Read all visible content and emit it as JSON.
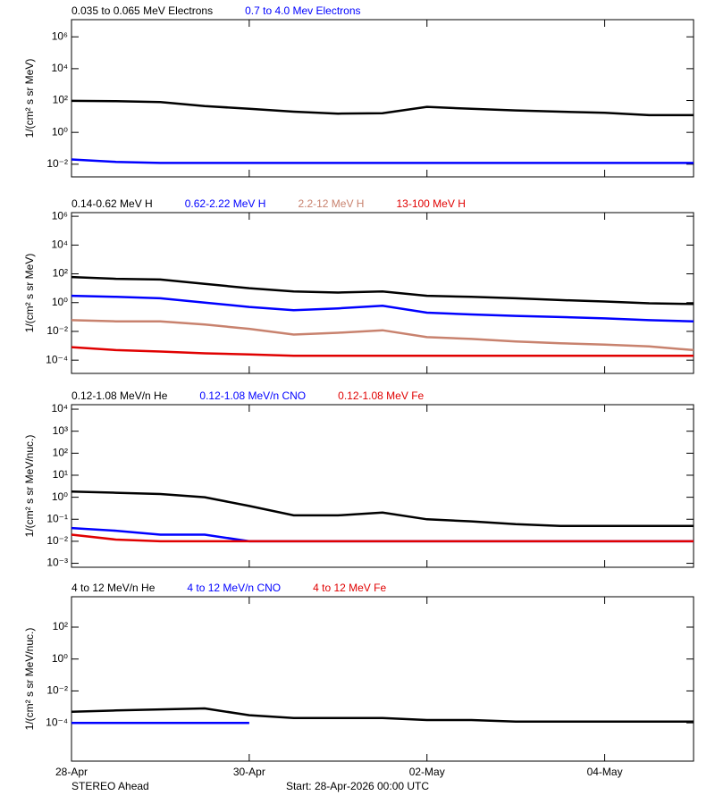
{
  "chart_data": [
    {
      "type": "line",
      "log_y": true,
      "ylabel": "1/(cm² s sr MeV)",
      "x": [
        0,
        0.5,
        1,
        1.5,
        2,
        2.5,
        3,
        3.5,
        4,
        4.5,
        5,
        5.5,
        6,
        6.5,
        7
      ],
      "xlim": [
        0,
        7
      ],
      "xticks": [
        {
          "value": 0,
          "label": "28-Apr"
        },
        {
          "value": 2,
          "label": "30-Apr"
        },
        {
          "value": 4,
          "label": "02-May"
        },
        {
          "value": 6,
          "label": "04-May"
        }
      ],
      "ylim": [
        0.0016,
        12000000
      ],
      "yticks": [
        {
          "value": 0.01,
          "label": "10⁻²"
        },
        {
          "value": 1,
          "label": "10⁰"
        },
        {
          "value": 100,
          "label": "10²"
        },
        {
          "value": 10000,
          "label": "10⁴"
        },
        {
          "value": 1000000,
          "label": "10⁶"
        }
      ],
      "series": [
        {
          "name": "0.035 to 0.065 MeV Electrons",
          "color": "#000000",
          "values": [
            95,
            90,
            80,
            45,
            30,
            20,
            15,
            16,
            40,
            30,
            24,
            20,
            17,
            12,
            12
          ]
        },
        {
          "name": "0.7 to 4.0 Mev Electrons",
          "color": "#0000ff",
          "values": [
            0.02,
            0.014,
            0.012,
            0.012,
            0.012,
            0.012,
            0.012,
            0.012,
            0.012,
            0.012,
            0.012,
            0.012,
            0.012,
            0.012,
            0.012
          ]
        }
      ]
    },
    {
      "type": "line",
      "log_y": true,
      "ylabel": "1/(cm² s sr MeV)",
      "x": [
        0,
        0.5,
        1,
        1.5,
        2,
        2.5,
        3,
        3.5,
        4,
        4.5,
        5,
        5.5,
        6,
        6.5,
        7
      ],
      "xlim": [
        0,
        7
      ],
      "xticks": [
        {
          "value": 0,
          "label": "28-Apr"
        },
        {
          "value": 2,
          "label": "30-Apr"
        },
        {
          "value": 4,
          "label": "02-May"
        },
        {
          "value": 6,
          "label": "04-May"
        }
      ],
      "ylim": [
        1.2e-05,
        1800000
      ],
      "yticks": [
        {
          "value": 0.0001,
          "label": "10⁻⁴"
        },
        {
          "value": 0.01,
          "label": "10⁻²"
        },
        {
          "value": 1,
          "label": "10⁰"
        },
        {
          "value": 100,
          "label": "10²"
        },
        {
          "value": 10000,
          "label": "10⁴"
        },
        {
          "value": 1000000,
          "label": "10⁶"
        }
      ],
      "series": [
        {
          "name": "0.14-0.62 MeV H",
          "color": "#000000",
          "values": [
            60,
            45,
            40,
            20,
            10,
            6,
            5,
            6,
            3,
            2.5,
            2,
            1.5,
            1.2,
            0.9,
            0.8
          ]
        },
        {
          "name": "0.62-2.22 MeV H",
          "color": "#0000ff",
          "values": [
            3,
            2.5,
            2,
            1,
            0.5,
            0.3,
            0.4,
            0.6,
            0.2,
            0.15,
            0.12,
            0.1,
            0.08,
            0.06,
            0.05
          ]
        },
        {
          "name": "2.2-12 MeV H",
          "color": "#c8826e",
          "values": [
            0.06,
            0.05,
            0.05,
            0.03,
            0.015,
            0.006,
            0.008,
            0.012,
            0.004,
            0.003,
            0.002,
            0.0015,
            0.0012,
            0.0009,
            0.0005
          ]
        },
        {
          "name": "13-100 MeV H",
          "color": "#e00000",
          "values": [
            0.0008,
            0.0005,
            0.0004,
            0.0003,
            0.00025,
            0.0002,
            0.0002,
            0.0002,
            0.0002,
            0.0002,
            0.0002,
            0.0002,
            0.0002,
            0.0002,
            0.0002
          ]
        }
      ]
    },
    {
      "type": "line",
      "log_y": true,
      "ylabel": "1/(cm² s sr MeV/nuc.)",
      "x": [
        0,
        0.5,
        1,
        1.5,
        2,
        2.5,
        3,
        3.5,
        4,
        4.5,
        5,
        5.5,
        6,
        6.5,
        7
      ],
      "xlim": [
        0,
        7
      ],
      "xticks": [
        {
          "value": 0,
          "label": "28-Apr"
        },
        {
          "value": 2,
          "label": "30-Apr"
        },
        {
          "value": 4,
          "label": "02-May"
        },
        {
          "value": 6,
          "label": "04-May"
        }
      ],
      "ylim": [
        0.00066,
        16000
      ],
      "yticks": [
        {
          "value": 0.001,
          "label": "10⁻³"
        },
        {
          "value": 0.01,
          "label": "10⁻²"
        },
        {
          "value": 0.1,
          "label": "10⁻¹"
        },
        {
          "value": 1,
          "label": "10⁰"
        },
        {
          "value": 10,
          "label": "10¹"
        },
        {
          "value": 100,
          "label": "10²"
        },
        {
          "value": 1000,
          "label": "10³"
        },
        {
          "value": 10000,
          "label": "10⁴"
        }
      ],
      "series": [
        {
          "name": "0.12-1.08 MeV/n He",
          "color": "#000000",
          "values": [
            1.8,
            1.6,
            1.4,
            1,
            0.4,
            0.15,
            0.15,
            0.2,
            0.1,
            0.08,
            0.06,
            0.05,
            0.05,
            0.05,
            0.05
          ]
        },
        {
          "name": "0.12-1.08 MeV/n CNO",
          "color": "#0000ff",
          "values": [
            0.04,
            0.03,
            0.02,
            0.02,
            0.01,
            0.01,
            0.01,
            0.01,
            0.01,
            0.01,
            0.01,
            0.01,
            0.01,
            0.01,
            0.01
          ]
        },
        {
          "name": "0.12-1.08 MeV Fe",
          "color": "#e00000",
          "values": [
            0.02,
            0.012,
            0.01,
            0.01,
            0.01,
            0.01,
            0.01,
            0.01,
            0.01,
            0.01,
            0.01,
            0.01,
            0.01,
            0.01,
            0.01
          ]
        }
      ]
    },
    {
      "type": "line",
      "log_y": true,
      "ylabel": "1/(cm² s sr MeV/nuc.)",
      "x": [
        0,
        0.5,
        1,
        1.5,
        2,
        2.5,
        3,
        3.5,
        4,
        4.5,
        5,
        5.5,
        6,
        6.5,
        7
      ],
      "xlim": [
        0,
        7
      ],
      "xticks": [
        {
          "value": 0,
          "label": "28-Apr"
        },
        {
          "value": 2,
          "label": "30-Apr"
        },
        {
          "value": 4,
          "label": "02-May"
        },
        {
          "value": 6,
          "label": "04-May"
        }
      ],
      "ylim": [
        4e-07,
        8000
      ],
      "yticks": [
        {
          "value": 0.0001,
          "label": "10⁻⁴"
        },
        {
          "value": 0.01,
          "label": "10⁻²"
        },
        {
          "value": 1,
          "label": "10⁰"
        },
        {
          "value": 100,
          "label": "10²"
        }
      ],
      "series": [
        {
          "name": "4 to 12 MeV/n He",
          "color": "#000000",
          "values": [
            0.0005,
            0.0006,
            0.0007,
            0.0008,
            0.0003,
            0.0002,
            0.0002,
            0.0002,
            0.00015,
            0.00015,
            0.00012,
            0.00012,
            0.00012,
            0.00012,
            0.00012
          ]
        },
        {
          "name": "4 to 12 MeV/n CNO",
          "color": "#0000ff",
          "values": [
            0.0001,
            0.0001,
            0.0001,
            0.0001,
            0.0001,
            null,
            null,
            null,
            null,
            null,
            null,
            null,
            null,
            null,
            null
          ]
        },
        {
          "name": "4 to 12 MeV Fe",
          "color": "#e00000",
          "values": [
            null,
            null,
            null,
            null,
            null,
            null,
            null,
            null,
            null,
            null,
            null,
            null,
            null,
            null,
            null
          ]
        }
      ]
    }
  ],
  "footer": {
    "spacecraft": "STEREO Ahead",
    "start": "Start: 28-Apr-2026 00:00 UTC"
  }
}
